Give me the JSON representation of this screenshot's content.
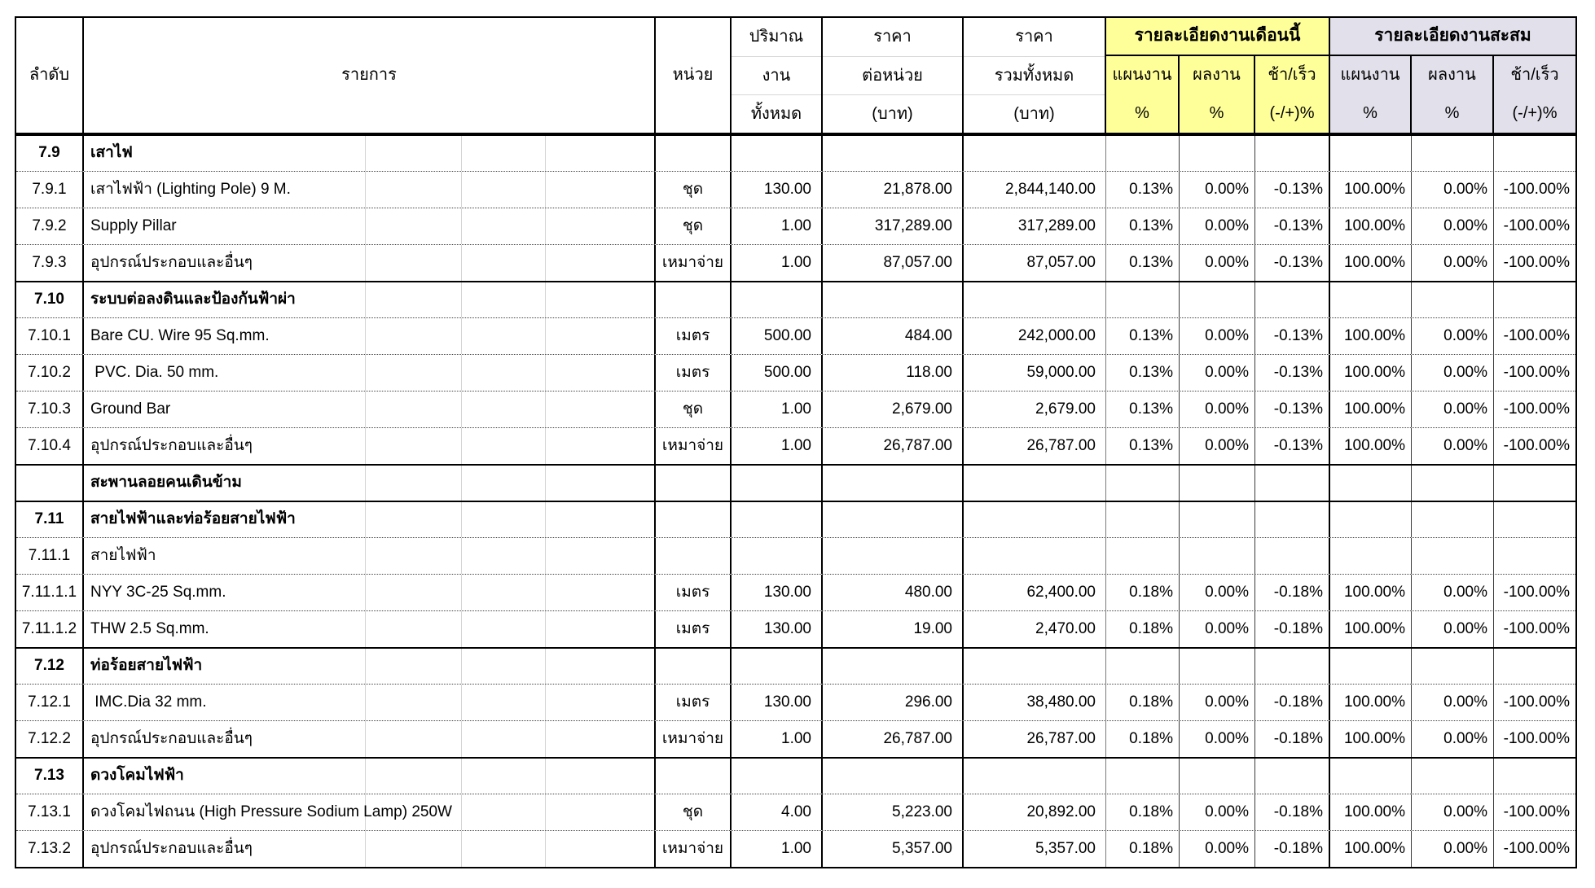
{
  "header": {
    "no": "ลำดับ",
    "description": "รายการ",
    "unit": "หน่วย",
    "quantity_lines": [
      "ปริมาณ",
      "งาน",
      "ทั้งหมด"
    ],
    "unit_price_lines": [
      "ราคา",
      "ต่อหน่วย",
      "(บาท)"
    ],
    "total_price_lines": [
      "ราคา",
      "รวมทั้งหมด",
      "(บาท)"
    ],
    "month_group": "รายละเอียดงานเดือนนี้",
    "cumulative_group": "รายละเอียดงานสะสม",
    "plan": "แผนงาน",
    "actual": "ผลงาน",
    "variance": "ช้า/เร็ว",
    "percent": "%",
    "variance_percent": "(-/+)%"
  },
  "colors": {
    "month_header_bg": "#FFFF99",
    "cumulative_header_bg": "#E1E0EB",
    "border": "#000000"
  },
  "rows": [
    {
      "no": "7.9",
      "desc": "เสาไฟ",
      "section": true
    },
    {
      "no": "7.9.1",
      "desc": "เสาไฟฟ้า (Lighting Pole) 9 M.",
      "unit": "ชุด",
      "qty": "130.00",
      "unit_price": "21,878.00",
      "total_price": "2,844,140.00",
      "m_plan": "0.13%",
      "m_actual": "0.00%",
      "m_var": "-0.13%",
      "c_plan": "100.00%",
      "c_actual": "0.00%",
      "c_var": "-100.00%"
    },
    {
      "no": "7.9.2",
      "desc": "Supply Pillar",
      "unit": "ชุด",
      "qty": "1.00",
      "unit_price": "317,289.00",
      "total_price": "317,289.00",
      "m_plan": "0.13%",
      "m_actual": "0.00%",
      "m_var": "-0.13%",
      "c_plan": "100.00%",
      "c_actual": "0.00%",
      "c_var": "-100.00%"
    },
    {
      "no": "7.9.3",
      "desc": "อุปกรณ์ประกอบและอื่นๆ",
      "unit": "เหมาจ่าย",
      "qty": "1.00",
      "unit_price": "87,057.00",
      "total_price": "87,057.00",
      "m_plan": "0.13%",
      "m_actual": "0.00%",
      "m_var": "-0.13%",
      "c_plan": "100.00%",
      "c_actual": "0.00%",
      "c_var": "-100.00%"
    },
    {
      "no": "7.10",
      "desc": "ระบบต่อลงดินและป้องกันฟ้าผ่า",
      "section": true
    },
    {
      "no": "7.10.1",
      "desc": "Bare CU. Wire 95 Sq.mm.",
      "unit": "เมตร",
      "qty": "500.00",
      "unit_price": "484.00",
      "total_price": "242,000.00",
      "m_plan": "0.13%",
      "m_actual": "0.00%",
      "m_var": "-0.13%",
      "c_plan": "100.00%",
      "c_actual": "0.00%",
      "c_var": "-100.00%"
    },
    {
      "no": "7.10.2",
      "desc": " PVC. Dia. 50 mm.",
      "unit": "เมตร",
      "qty": "500.00",
      "unit_price": "118.00",
      "total_price": "59,000.00",
      "m_plan": "0.13%",
      "m_actual": "0.00%",
      "m_var": "-0.13%",
      "c_plan": "100.00%",
      "c_actual": "0.00%",
      "c_var": "-100.00%"
    },
    {
      "no": "7.10.3",
      "desc": "Ground Bar",
      "unit": "ชุด",
      "qty": "1.00",
      "unit_price": "2,679.00",
      "total_price": "2,679.00",
      "m_plan": "0.13%",
      "m_actual": "0.00%",
      "m_var": "-0.13%",
      "c_plan": "100.00%",
      "c_actual": "0.00%",
      "c_var": "-100.00%"
    },
    {
      "no": "7.10.4",
      "desc": "อุปกรณ์ประกอบและอื่นๆ",
      "unit": "เหมาจ่าย",
      "qty": "1.00",
      "unit_price": "26,787.00",
      "total_price": "26,787.00",
      "m_plan": "0.13%",
      "m_actual": "0.00%",
      "m_var": "-0.13%",
      "c_plan": "100.00%",
      "c_actual": "0.00%",
      "c_var": "-100.00%"
    },
    {
      "no": "",
      "desc": "สะพานลอยคนเดินข้าม",
      "section": true
    },
    {
      "no": "7.11",
      "desc": "สายไฟฟ้าและท่อร้อยสายไฟฟ้า",
      "section": true
    },
    {
      "no": "7.11.1",
      "desc": "สายไฟฟ้า"
    },
    {
      "no": "7.11.1.1",
      "desc": "NYY 3C-25 Sq.mm.",
      "unit": "เมตร",
      "qty": "130.00",
      "unit_price": "480.00",
      "total_price": "62,400.00",
      "m_plan": "0.18%",
      "m_actual": "0.00%",
      "m_var": "-0.18%",
      "c_plan": "100.00%",
      "c_actual": "0.00%",
      "c_var": "-100.00%"
    },
    {
      "no": "7.11.1.2",
      "desc": "THW 2.5 Sq.mm.",
      "unit": "เมตร",
      "qty": "130.00",
      "unit_price": "19.00",
      "total_price": "2,470.00",
      "m_plan": "0.18%",
      "m_actual": "0.00%",
      "m_var": "-0.18%",
      "c_plan": "100.00%",
      "c_actual": "0.00%",
      "c_var": "-100.00%"
    },
    {
      "no": "7.12",
      "desc": "ท่อร้อยสายไฟฟ้า",
      "section": true
    },
    {
      "no": "7.12.1",
      "desc": " IMC.Dia 32 mm.",
      "unit": "เมตร",
      "qty": "130.00",
      "unit_price": "296.00",
      "total_price": "38,480.00",
      "m_plan": "0.18%",
      "m_actual": "0.00%",
      "m_var": "-0.18%",
      "c_plan": "100.00%",
      "c_actual": "0.00%",
      "c_var": "-100.00%"
    },
    {
      "no": "7.12.2",
      "desc": "อุปกรณ์ประกอบและอื่นๆ",
      "unit": "เหมาจ่าย",
      "qty": "1.00",
      "unit_price": "26,787.00",
      "total_price": "26,787.00",
      "m_plan": "0.18%",
      "m_actual": "0.00%",
      "m_var": "-0.18%",
      "c_plan": "100.00%",
      "c_actual": "0.00%",
      "c_var": "-100.00%"
    },
    {
      "no": "7.13",
      "desc": "ดวงโคมไฟฟ้า",
      "section": true
    },
    {
      "no": "7.13.1",
      "desc": "ดวงโคมไฟถนน (High Pressure Sodium Lamp) 250W",
      "unit": "ชุด",
      "qty": "4.00",
      "unit_price": "5,223.00",
      "total_price": "20,892.00",
      "m_plan": "0.18%",
      "m_actual": "0.00%",
      "m_var": "-0.18%",
      "c_plan": "100.00%",
      "c_actual": "0.00%",
      "c_var": "-100.00%"
    },
    {
      "no": "7.13.2",
      "desc": "อุปกรณ์ประกอบและอื่นๆ",
      "unit": "เหมาจ่าย",
      "qty": "1.00",
      "unit_price": "5,357.00",
      "total_price": "5,357.00",
      "m_plan": "0.18%",
      "m_actual": "0.00%",
      "m_var": "-0.18%",
      "c_plan": "100.00%",
      "c_actual": "0.00%",
      "c_var": "-100.00%"
    }
  ]
}
